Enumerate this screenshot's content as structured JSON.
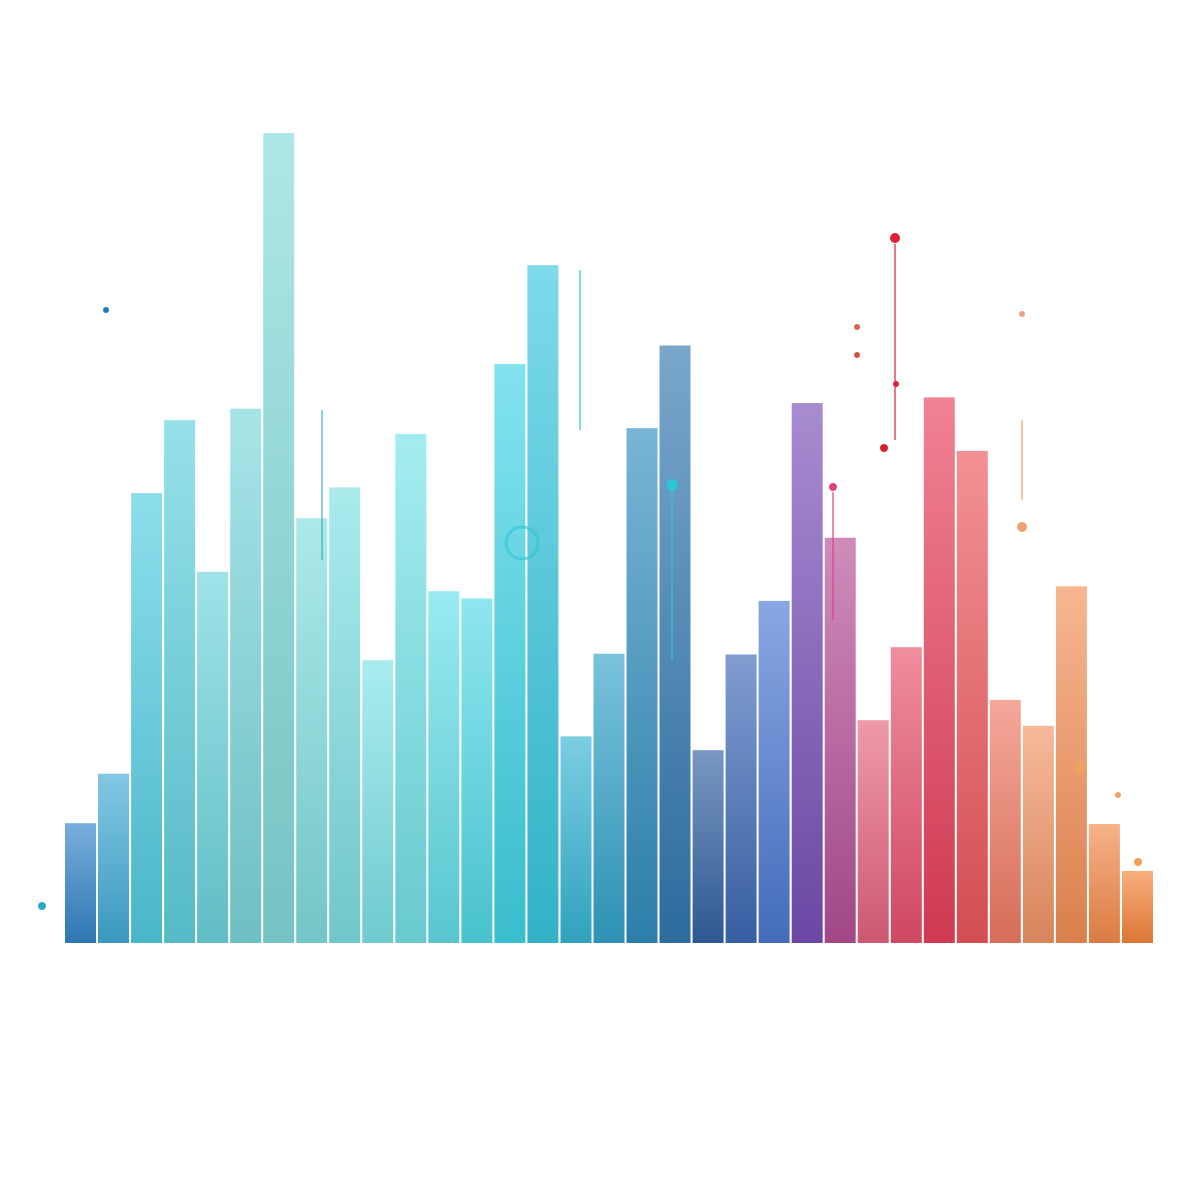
{
  "chart_data": {
    "type": "bar",
    "title": "",
    "xlabel": "",
    "ylabel": "",
    "axes_visible": false,
    "grid": false,
    "legend": "none",
    "ylim": [
      0,
      100
    ],
    "gradient": {
      "start": "#2ec4d6",
      "middle": "#1f3f8f",
      "accent": "#7a2fa0",
      "end": "#f07a2a"
    },
    "values": [
      14.9,
      21.0,
      55.6,
      64.6,
      45.9,
      66.0,
      100.0,
      52.5,
      56.3,
      35.0,
      62.9,
      43.5,
      42.6,
      71.5,
      83.7,
      25.6,
      35.8,
      63.6,
      73.8,
      23.9,
      35.7,
      42.3,
      66.7,
      50.1,
      27.6,
      36.6,
      67.4,
      60.8,
      30.1,
      26.9,
      44.1,
      14.8,
      9.0
    ]
  }
}
